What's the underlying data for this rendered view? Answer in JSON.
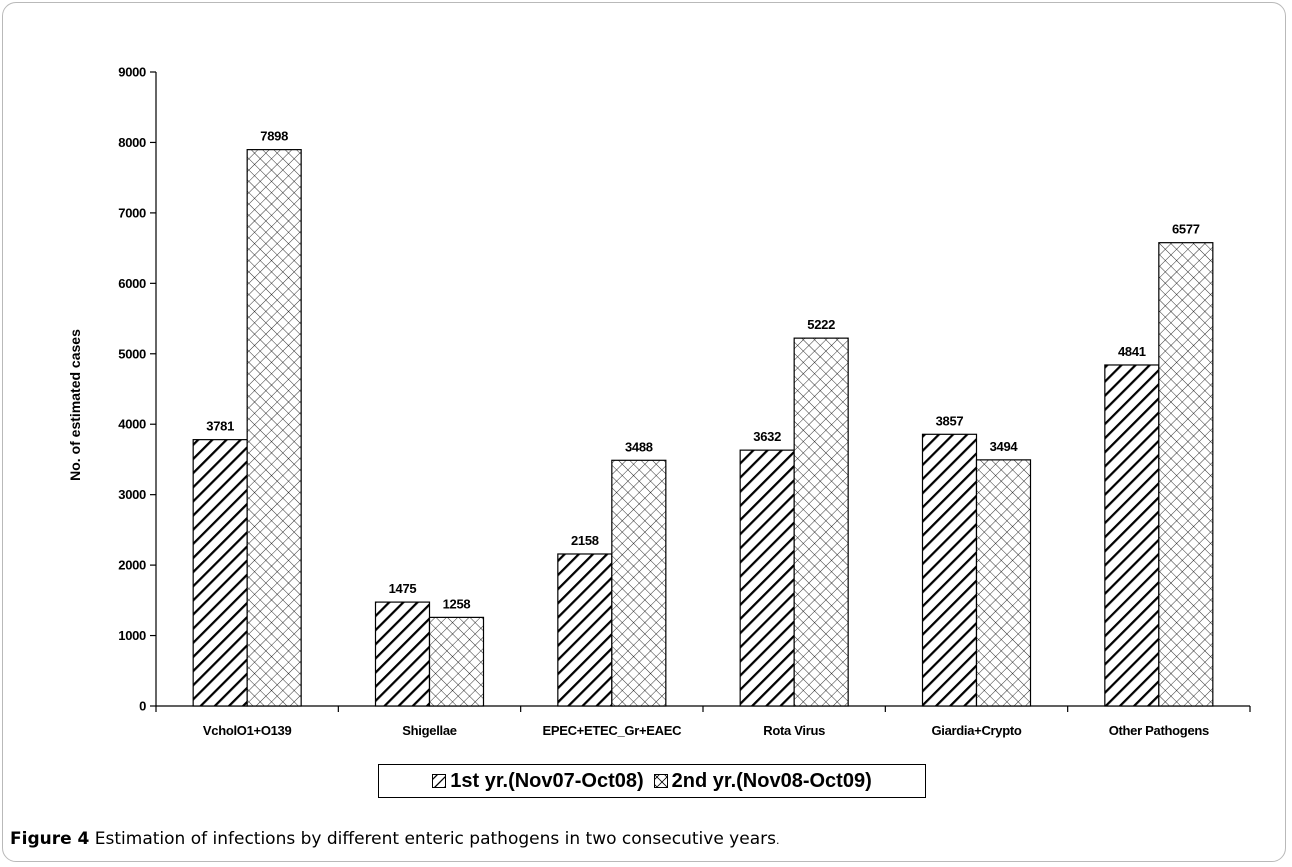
{
  "chart_data": {
    "type": "bar",
    "title": "",
    "xlabel": "",
    "ylabel": "No. of estimated cases",
    "ylim": [
      0,
      9000
    ],
    "yticks": [
      0,
      1000,
      2000,
      3000,
      4000,
      5000,
      6000,
      7000,
      8000,
      9000
    ],
    "categories": [
      "VcholO1+O139",
      "Shigellae",
      "EPEC+ETEC_Gr+EAEC",
      "Rota Virus",
      "Giardia+Crypto",
      "Other Pathogens"
    ],
    "series": [
      {
        "name": "1st yr.(Nov07-Oct08)",
        "pattern": "diagonal-hatch",
        "values": [
          3781,
          1475,
          2158,
          3632,
          3857,
          4841
        ]
      },
      {
        "name": "2nd yr.(Nov08-Oct09)",
        "pattern": "cross-hatch",
        "values": [
          7898,
          1258,
          3488,
          5222,
          3494,
          6577
        ]
      }
    ],
    "legend_position": "bottom",
    "grid": false,
    "data_labels": true
  },
  "caption": {
    "label": "Figure 4",
    "text": "Estimation of infections by different enteric pathogens in two consecutive years",
    "suffix": "."
  },
  "colors": {
    "bar_fill": "#ffffff",
    "bar_stroke": "#000000",
    "frame": "#b9b9b9"
  }
}
